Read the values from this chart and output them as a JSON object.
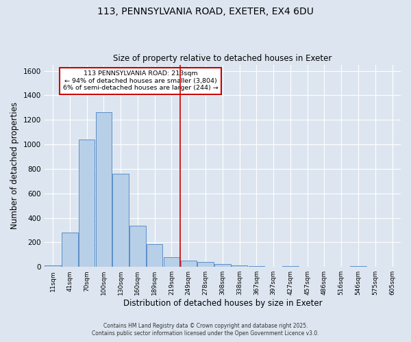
{
  "title": "113, PENNSYLVANIA ROAD, EXETER, EX4 6DU",
  "subtitle": "Size of property relative to detached houses in Exeter",
  "xlabel": "Distribution of detached houses by size in Exeter",
  "ylabel": "Number of detached properties",
  "categories": [
    "11sqm",
    "41sqm",
    "70sqm",
    "100sqm",
    "130sqm",
    "160sqm",
    "189sqm",
    "219sqm",
    "249sqm",
    "278sqm",
    "308sqm",
    "338sqm",
    "367sqm",
    "397sqm",
    "427sqm",
    "457sqm",
    "486sqm",
    "516sqm",
    "546sqm",
    "575sqm",
    "605sqm"
  ],
  "values": [
    10,
    280,
    1040,
    1260,
    760,
    335,
    185,
    80,
    50,
    38,
    25,
    12,
    8,
    0,
    5,
    0,
    0,
    0,
    5,
    0,
    0
  ],
  "bar_color": "#b8cfe8",
  "bar_edge_color": "#5b8fc9",
  "bg_color": "#dde6f0",
  "grid_color": "#ffffff",
  "vline_x_index": 7,
  "vline_color": "#cc0000",
  "annotation_text": "113 PENNSYLVANIA ROAD: 213sqm\n← 94% of detached houses are smaller (3,804)\n6% of semi-detached houses are larger (244) →",
  "annotation_box_color": "#ffffff",
  "annotation_box_edge": "#cc0000",
  "ylim": [
    0,
    1650
  ],
  "yticks": [
    0,
    200,
    400,
    600,
    800,
    1000,
    1200,
    1400,
    1600
  ],
  "footnote1": "Contains HM Land Registry data © Crown copyright and database right 2025.",
  "footnote2": "Contains public sector information licensed under the Open Government Licence v3.0."
}
